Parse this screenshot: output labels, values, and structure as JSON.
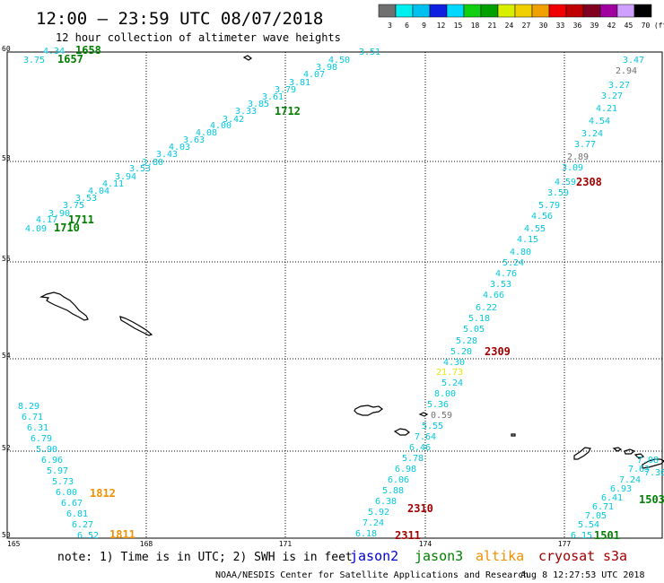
{
  "header": {
    "title": "12:00 – 23:59 UTC 08/07/2018",
    "subtitle": "12 hour collection of altimeter wave heights"
  },
  "legend": {
    "colors": [
      "#707070",
      "#00f0f0",
      "#00c0f0",
      "#1020e0",
      "#00d8ff",
      "#10d010",
      "#00a000",
      "#d8f000",
      "#f0d000",
      "#f0a000",
      "#f00000",
      "#c00000",
      "#800020",
      "#a000a0",
      "#d0a0ff",
      "#000000"
    ],
    "labels": [
      "3",
      "6",
      "9",
      "12",
      "15",
      "18",
      "21",
      "24",
      "27",
      "30",
      "33",
      "36",
      "39",
      "42",
      "45",
      "70",
      "(ft)"
    ]
  },
  "axes": {
    "lon_labels": [
      "165",
      "168",
      "171",
      "174",
      "177"
    ],
    "lat_labels": [
      "60",
      "58",
      "56",
      "54",
      "52",
      "50"
    ]
  },
  "colors": {
    "jason2": "#0000d0",
    "jason3": "#008000",
    "altika": "#f09000",
    "cryosat": "#a00000",
    "s3a": "#a00000",
    "wave": "#00c8e0",
    "gray": "#707070",
    "yellow": "#e8e800",
    "grid": "#000000"
  },
  "track_values": [
    {
      "v": "3.75",
      "c": "wave"
    },
    {
      "v": "4.34",
      "c": "wave"
    },
    {
      "v": "4.09",
      "c": "wave"
    },
    {
      "v": "4.17",
      "c": "wave"
    },
    {
      "v": "3.90",
      "c": "wave"
    },
    {
      "v": "3.75",
      "c": "wave"
    },
    {
      "v": "3.53",
      "c": "wave"
    },
    {
      "v": "4.04",
      "c": "wave"
    },
    {
      "v": "4.11",
      "c": "wave"
    },
    {
      "v": "3.94",
      "c": "wave"
    },
    {
      "v": "3.53",
      "c": "wave"
    },
    {
      "v": "3.80",
      "c": "wave"
    },
    {
      "v": "3.43",
      "c": "wave"
    },
    {
      "v": "4.03",
      "c": "wave"
    },
    {
      "v": "3.63",
      "c": "wave"
    },
    {
      "v": "4.08",
      "c": "wave"
    },
    {
      "v": "4.00",
      "c": "wave"
    },
    {
      "v": "3.42",
      "c": "wave"
    },
    {
      "v": "3.33",
      "c": "wave"
    },
    {
      "v": "3.85",
      "c": "wave"
    },
    {
      "v": "3.61",
      "c": "wave"
    },
    {
      "v": "3.79",
      "c": "wave"
    },
    {
      "v": "3.81",
      "c": "wave"
    },
    {
      "v": "4.07",
      "c": "wave"
    },
    {
      "v": "3.98",
      "c": "wave"
    },
    {
      "v": "4.50",
      "c": "wave"
    },
    {
      "v": "3.51",
      "c": "wave"
    },
    {
      "v": "3.47",
      "c": "wave"
    },
    {
      "v": "2.94",
      "c": "gray"
    },
    {
      "v": "3.27",
      "c": "wave"
    },
    {
      "v": "3.27",
      "c": "wave"
    },
    {
      "v": "4.21",
      "c": "wave"
    },
    {
      "v": "4.54",
      "c": "wave"
    },
    {
      "v": "3.24",
      "c": "wave"
    },
    {
      "v": "3.77",
      "c": "wave"
    },
    {
      "v": "2.89",
      "c": "gray"
    },
    {
      "v": "3.09",
      "c": "wave"
    },
    {
      "v": "4.59",
      "c": "wave"
    },
    {
      "v": "3.59",
      "c": "wave"
    },
    {
      "v": "5.79",
      "c": "wave"
    },
    {
      "v": "4.56",
      "c": "wave"
    },
    {
      "v": "4.55",
      "c": "wave"
    },
    {
      "v": "4.15",
      "c": "wave"
    },
    {
      "v": "4.80",
      "c": "wave"
    },
    {
      "v": "5.24",
      "c": "wave"
    },
    {
      "v": "4.76",
      "c": "wave"
    },
    {
      "v": "3.53",
      "c": "wave"
    },
    {
      "v": "4.66",
      "c": "wave"
    },
    {
      "v": "6.22",
      "c": "wave"
    },
    {
      "v": "5.18",
      "c": "wave"
    },
    {
      "v": "5.05",
      "c": "wave"
    },
    {
      "v": "5.28",
      "c": "wave"
    },
    {
      "v": "5.20",
      "c": "wave"
    },
    {
      "v": "4.30",
      "c": "wave"
    },
    {
      "v": "21.73",
      "c": "yellow"
    },
    {
      "v": "5.24",
      "c": "wave"
    },
    {
      "v": "8.00",
      "c": "wave"
    },
    {
      "v": "5.36",
      "c": "wave"
    },
    {
      "v": "0.59",
      "c": "gray"
    },
    {
      "v": "5.55",
      "c": "wave"
    },
    {
      "v": "7.64",
      "c": "wave"
    },
    {
      "v": "6.46",
      "c": "wave"
    },
    {
      "v": "5.78",
      "c": "wave"
    },
    {
      "v": "6.98",
      "c": "wave"
    },
    {
      "v": "6.06",
      "c": "wave"
    },
    {
      "v": "5.88",
      "c": "wave"
    },
    {
      "v": "6.38",
      "c": "wave"
    },
    {
      "v": "5.92",
      "c": "wave"
    },
    {
      "v": "7.24",
      "c": "wave"
    },
    {
      "v": "6.18",
      "c": "wave"
    },
    {
      "v": "8.29",
      "c": "wave"
    },
    {
      "v": "6.71",
      "c": "wave"
    },
    {
      "v": "6.31",
      "c": "wave"
    },
    {
      "v": "6.79",
      "c": "wave"
    },
    {
      "v": "5.90",
      "c": "wave"
    },
    {
      "v": "6.96",
      "c": "wave"
    },
    {
      "v": "5.97",
      "c": "wave"
    },
    {
      "v": "5.73",
      "c": "wave"
    },
    {
      "v": "6.00",
      "c": "wave"
    },
    {
      "v": "6.67",
      "c": "wave"
    },
    {
      "v": "6.81",
      "c": "wave"
    },
    {
      "v": "6.27",
      "c": "wave"
    },
    {
      "v": "6.52",
      "c": "wave"
    },
    {
      "v": "6.15",
      "c": "wave"
    },
    {
      "v": "5.54",
      "c": "wave"
    },
    {
      "v": "7.05",
      "c": "wave"
    },
    {
      "v": "6.71",
      "c": "wave"
    },
    {
      "v": "6.41",
      "c": "wave"
    },
    {
      "v": "6.93",
      "c": "wave"
    },
    {
      "v": "7.24",
      "c": "wave"
    },
    {
      "v": "7.63",
      "c": "wave"
    },
    {
      "v": "7.08",
      "c": "wave"
    },
    {
      "v": "7.36",
      "c": "wave"
    }
  ],
  "time_labels": [
    {
      "v": "1658",
      "c": "jason3"
    },
    {
      "v": "1657",
      "c": "jason3"
    },
    {
      "v": "1712",
      "c": "jason3"
    },
    {
      "v": "1711",
      "c": "jason3"
    },
    {
      "v": "1710",
      "c": "jason3"
    },
    {
      "v": "2308",
      "c": "cryosat"
    },
    {
      "v": "2309",
      "c": "cryosat"
    },
    {
      "v": "2310",
      "c": "cryosat"
    },
    {
      "v": "2311",
      "c": "cryosat"
    },
    {
      "v": "1812",
      "c": "altika"
    },
    {
      "v": "1811",
      "c": "altika"
    },
    {
      "v": "1501",
      "c": "jason3"
    },
    {
      "v": "1503",
      "c": "jason3"
    }
  ],
  "footer": {
    "note": "note:  1) Time is in UTC;  2) SWH is in feet",
    "satellites": [
      {
        "name": "jason2",
        "c": "jason2"
      },
      {
        "name": "jason3",
        "c": "jason3"
      },
      {
        "name": "altika",
        "c": "altika"
      },
      {
        "name": "cryosat",
        "c": "cryosat"
      },
      {
        "name": "s3a",
        "c": "s3a"
      }
    ],
    "credit": "NOAA/NESDIS Center for Satellite Applications and Research",
    "timestamp": "Aug  8 12:27:53 UTC 2018"
  }
}
